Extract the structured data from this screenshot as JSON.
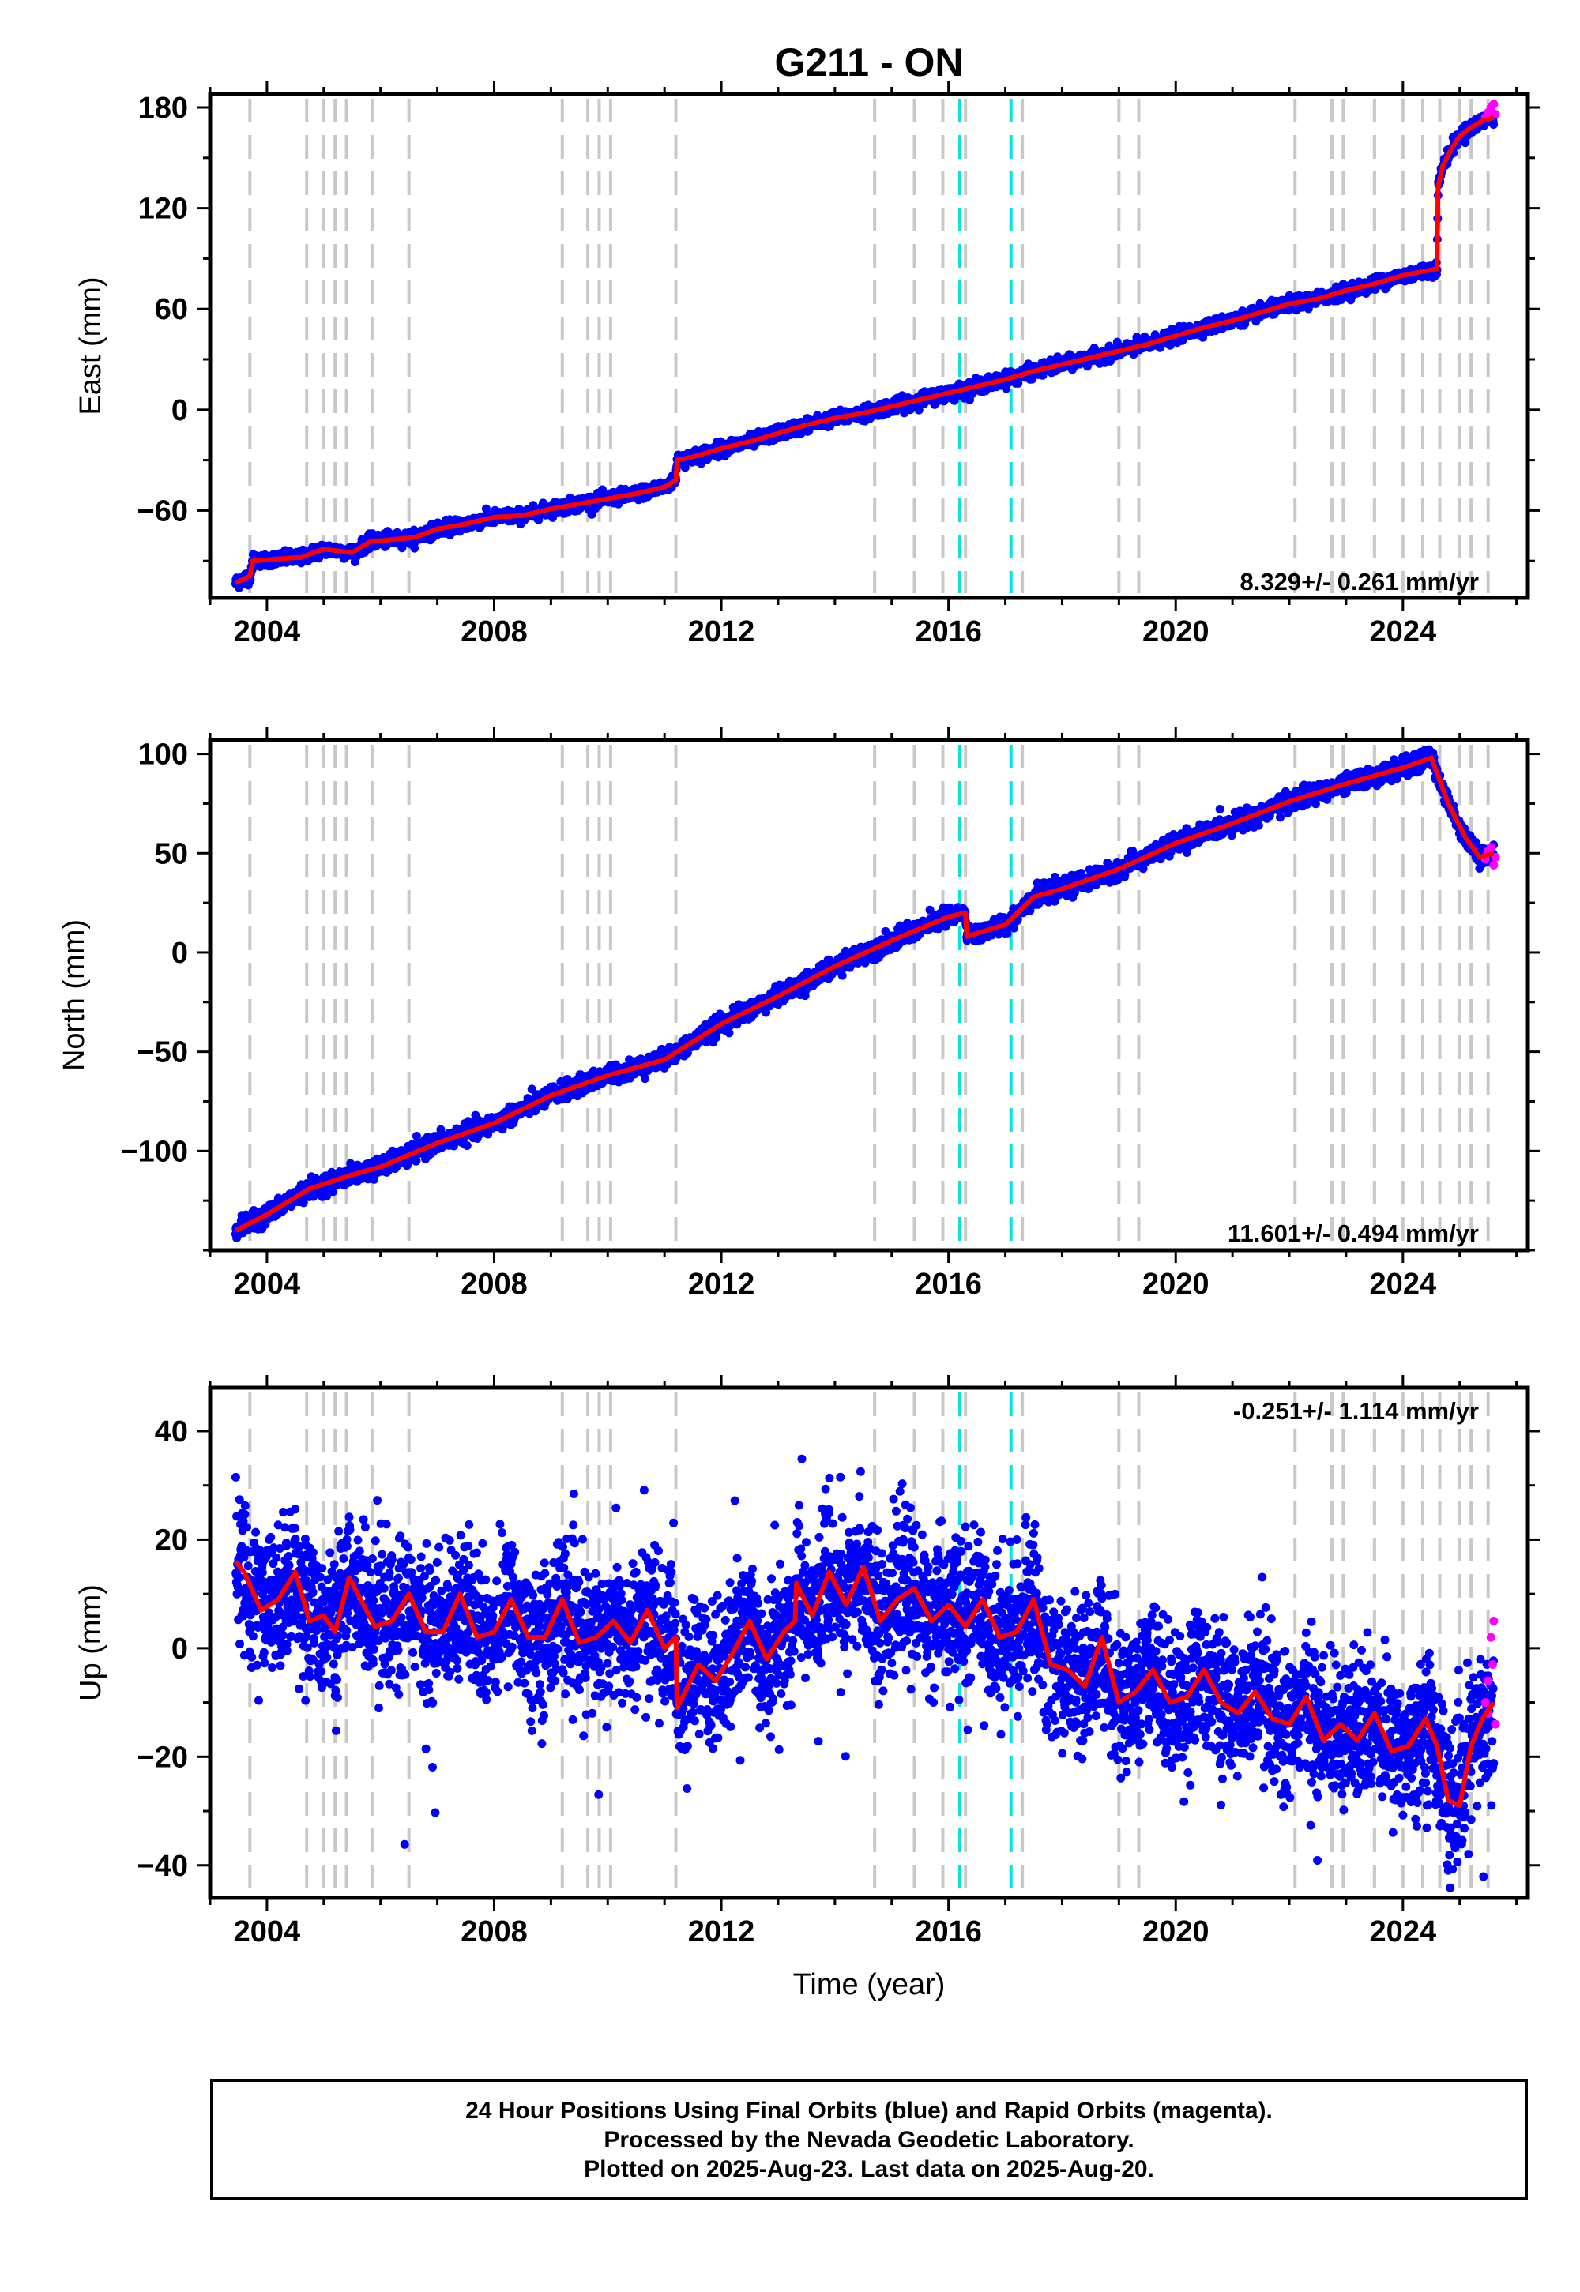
{
  "title": "G211 - ON",
  "xlabel": "Time (year)",
  "colors": {
    "final": "#0000ff",
    "rapid": "#ff00ff",
    "model": "#ff0000",
    "steps": "#c8c8c8",
    "antenna": "#00e6e6"
  },
  "chart_data": [
    {
      "type": "scatter",
      "panel": "east",
      "ylabel": "East (mm)",
      "xlim": [
        2003.0,
        2026.2
      ],
      "ylim": [
        -112,
        188
      ],
      "xticks": [
        2004,
        2008,
        2012,
        2016,
        2020,
        2024
      ],
      "yticks": [
        -60,
        0,
        60,
        120,
        180
      ],
      "rate": "8.329+/- 0.261 mm/yr",
      "rate_position": "bottom-right",
      "model": {
        "x": [
          2003.45,
          2003.7,
          2003.75,
          2004.5,
          2004.6,
          2004.75,
          2005.0,
          2005.5,
          2005.85,
          2006.0,
          2006.6,
          2007.0,
          2007.5,
          2008.0,
          2008.5,
          2009.0,
          2009.5,
          2010.0,
          2010.5,
          2011.0,
          2011.2,
          2011.22,
          2011.5,
          2012.0,
          2012.5,
          2013.0,
          2013.5,
          2014.0,
          2014.5,
          2015.0,
          2015.5,
          2016.0,
          2016.5,
          2017.0,
          2017.5,
          2018.0,
          2018.5,
          2019.0,
          2019.5,
          2020.0,
          2020.5,
          2021.0,
          2021.5,
          2022.0,
          2022.5,
          2023.0,
          2023.5,
          2024.0,
          2024.6,
          2024.62,
          2024.7,
          2024.85,
          2025.0,
          2025.2,
          2025.4,
          2025.6
        ],
        "y": [
          -103,
          -99,
          -90,
          -88,
          -88,
          -86,
          -83,
          -85,
          -78,
          -78,
          -76,
          -71,
          -68,
          -64,
          -63,
          -59,
          -56,
          -53,
          -50,
          -46,
          -42,
          -30,
          -28,
          -23,
          -19,
          -14,
          -9,
          -5,
          -2,
          2,
          6,
          10,
          14,
          18,
          23,
          27,
          31,
          35,
          39,
          44,
          49,
          53,
          58,
          63,
          66,
          71,
          75,
          80,
          84,
          133,
          145,
          155,
          163,
          168,
          172,
          174
        ]
      },
      "rapid": {
        "x": [
          2025.45,
          2025.5,
          2025.55,
          2025.6,
          2025.63
        ],
        "y": [
          174,
          177,
          180,
          182,
          176
        ]
      }
    },
    {
      "type": "scatter",
      "panel": "north",
      "ylabel": "North (mm)",
      "xlim": [
        2003.0,
        2026.2
      ],
      "ylim": [
        -150,
        107
      ],
      "xticks": [
        2004,
        2008,
        2012,
        2016,
        2020,
        2024
      ],
      "yticks": [
        -100,
        -50,
        0,
        50,
        100
      ],
      "rate": "11.601+/- 0.494 mm/yr",
      "rate_position": "bottom-right",
      "model": {
        "x": [
          2003.45,
          2004.0,
          2004.75,
          2005.5,
          2006.0,
          2007.0,
          2008.0,
          2009.0,
          2010.0,
          2011.0,
          2012.0,
          2013.0,
          2014.0,
          2015.0,
          2016.0,
          2016.3,
          2016.32,
          2017.0,
          2017.5,
          2018.0,
          2019.0,
          2020.0,
          2021.0,
          2022.0,
          2023.0,
          2024.0,
          2024.5,
          2024.8,
          2025.1,
          2025.35,
          2025.6
        ],
        "y": [
          -140,
          -132,
          -119,
          -112,
          -108,
          -96,
          -86,
          -72,
          -62,
          -54,
          -36,
          -22,
          -7,
          6,
          18,
          20,
          8,
          14,
          28,
          32,
          42,
          55,
          65,
          76,
          85,
          93,
          98,
          75,
          58,
          48,
          50
        ]
      },
      "rapid": {
        "x": [
          2025.45,
          2025.5,
          2025.55,
          2025.6,
          2025.63
        ],
        "y": [
          47,
          51,
          53,
          44,
          48
        ]
      }
    },
    {
      "type": "scatter",
      "panel": "up",
      "ylabel": "Up (mm)",
      "xlim": [
        2003.0,
        2026.2
      ],
      "ylim": [
        -46,
        48
      ],
      "xticks": [
        2004,
        2008,
        2012,
        2016,
        2020,
        2024
      ],
      "yticks": [
        -40,
        -20,
        0,
        20,
        40
      ],
      "rate": "-0.251+/- 1.114 mm/yr",
      "rate_position": "top-right",
      "model": {
        "x": [
          2003.45,
          2003.6,
          2003.9,
          2004.2,
          2004.5,
          2004.75,
          2005.0,
          2005.2,
          2005.45,
          2005.9,
          2006.2,
          2006.5,
          2006.8,
          2007.1,
          2007.4,
          2007.7,
          2008.0,
          2008.3,
          2008.6,
          2008.9,
          2009.2,
          2009.5,
          2009.8,
          2010.1,
          2010.4,
          2010.7,
          2011.0,
          2011.2,
          2011.22,
          2011.6,
          2011.9,
          2012.2,
          2012.5,
          2012.8,
          2013.1,
          2013.3,
          2013.32,
          2013.6,
          2013.9,
          2014.2,
          2014.5,
          2014.8,
          2015.1,
          2015.4,
          2015.7,
          2016.0,
          2016.3,
          2016.6,
          2016.9,
          2017.2,
          2017.5,
          2017.8,
          2018.1,
          2018.4,
          2018.7,
          2019.0,
          2019.3,
          2019.6,
          2019.9,
          2020.2,
          2020.5,
          2020.8,
          2021.1,
          2021.4,
          2021.7,
          2022.0,
          2022.3,
          2022.6,
          2022.9,
          2023.2,
          2023.5,
          2023.8,
          2024.1,
          2024.4,
          2024.6,
          2024.8,
          2025.0,
          2025.2,
          2025.4,
          2025.6
        ],
        "y": [
          16,
          14,
          7,
          9,
          14,
          5,
          6,
          3,
          13,
          4,
          5,
          10,
          3,
          3,
          10,
          2,
          3,
          9,
          2,
          2,
          9,
          1,
          2,
          5,
          1,
          7,
          0,
          2,
          -11,
          -3,
          -6,
          -1,
          5,
          -2,
          3,
          5,
          12,
          6,
          14,
          8,
          15,
          5,
          9,
          11,
          5,
          8,
          4,
          9,
          2,
          3,
          9,
          -3,
          -4,
          -7,
          2,
          -10,
          -8,
          -4,
          -10,
          -9,
          -4,
          -10,
          -12,
          -8,
          -13,
          -14,
          -9,
          -17,
          -14,
          -17,
          -12,
          -19,
          -18,
          -13,
          -18,
          -28,
          -29,
          -18,
          -13,
          -10
        ]
      },
      "rapid": {
        "x": [
          2025.45,
          2025.5,
          2025.55,
          2025.6,
          2025.63,
          2025.5,
          2025.58
        ],
        "y": [
          -10,
          -6,
          2,
          5,
          -14,
          -12,
          -3
        ]
      }
    }
  ],
  "steps": {
    "equipment": [
      2003.7,
      2004.7,
      2005.0,
      2005.2,
      2005.4,
      2005.85,
      2006.5,
      2009.2,
      2009.65,
      2009.85,
      2010.05,
      2011.2,
      2014.7,
      2015.4,
      2015.9,
      2016.3,
      2017.3,
      2019.0,
      2019.35,
      2022.1,
      2022.75,
      2022.95,
      2023.5,
      2024.0,
      2024.35,
      2024.65,
      2025.0,
      2025.2,
      2025.5
    ],
    "antenna": [
      2016.2,
      2017.1
    ]
  },
  "footer": {
    "line1": "24 Hour Positions Using Final Orbits (blue) and Rapid Orbits (magenta).",
    "line2": "Processed by the Nevada Geodetic Laboratory.",
    "line3": "Plotted on 2025-Aug-23. Last data on 2025-Aug-20."
  }
}
